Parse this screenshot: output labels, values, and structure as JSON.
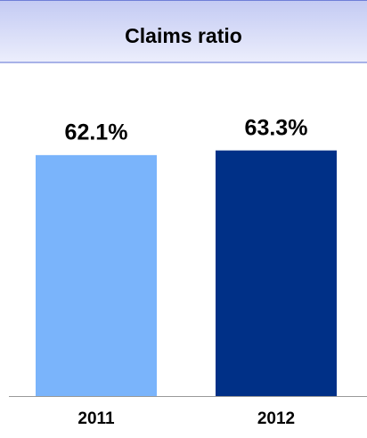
{
  "chart_data": {
    "type": "bar",
    "title": "Claims ratio",
    "categories": [
      "2011",
      "2012"
    ],
    "values": [
      62.1,
      63.3
    ],
    "value_labels": [
      "62.1%",
      "63.3%"
    ],
    "colors": [
      "#7ab4fb",
      "#003087"
    ]
  }
}
